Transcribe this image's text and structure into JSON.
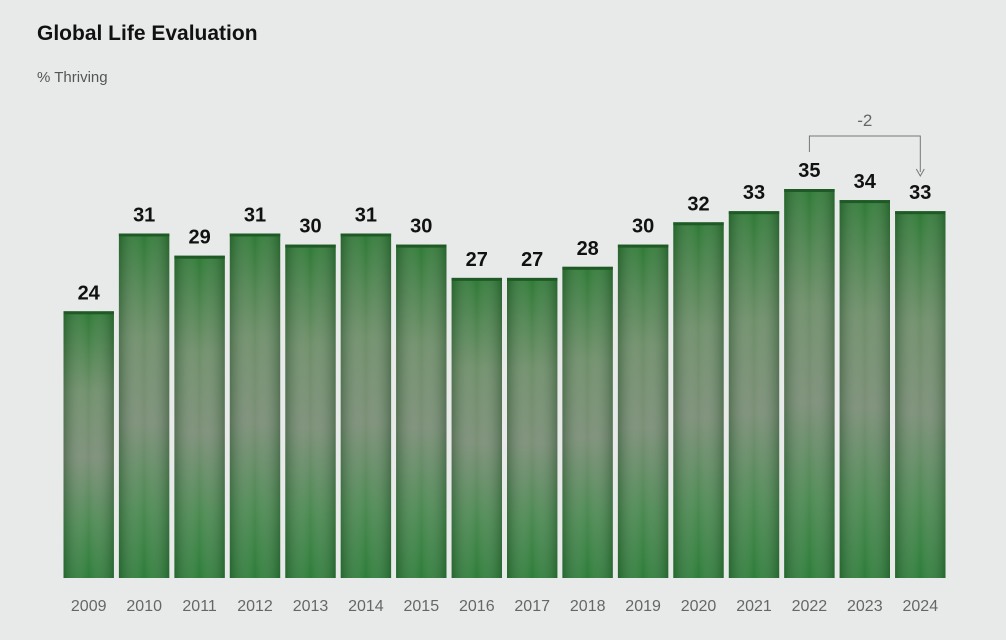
{
  "header": {
    "title": "Global Life Evaluation",
    "subtitle": "% Thriving"
  },
  "chart_data": {
    "type": "bar",
    "title": "Global Life Evaluation",
    "subtitle": "% Thriving",
    "categories": [
      "2009",
      "2010",
      "2011",
      "2012",
      "2013",
      "2014",
      "2015",
      "2016",
      "2017",
      "2018",
      "2019",
      "2020",
      "2021",
      "2022",
      "2023",
      "2024"
    ],
    "values": [
      24,
      31,
      29,
      31,
      30,
      31,
      30,
      27,
      27,
      28,
      30,
      32,
      33,
      35,
      34,
      33
    ],
    "ylim": [
      0,
      35
    ],
    "grid": false,
    "annotation": {
      "text": "-2",
      "from": "2022",
      "to": "2024"
    },
    "colors": {
      "bar_top": "#2f7a36",
      "bar_mid": "#5a8f5c",
      "bar_bottom": "#2e7d3a",
      "divider": "#ffffff",
      "road": "#7c8f78"
    }
  }
}
